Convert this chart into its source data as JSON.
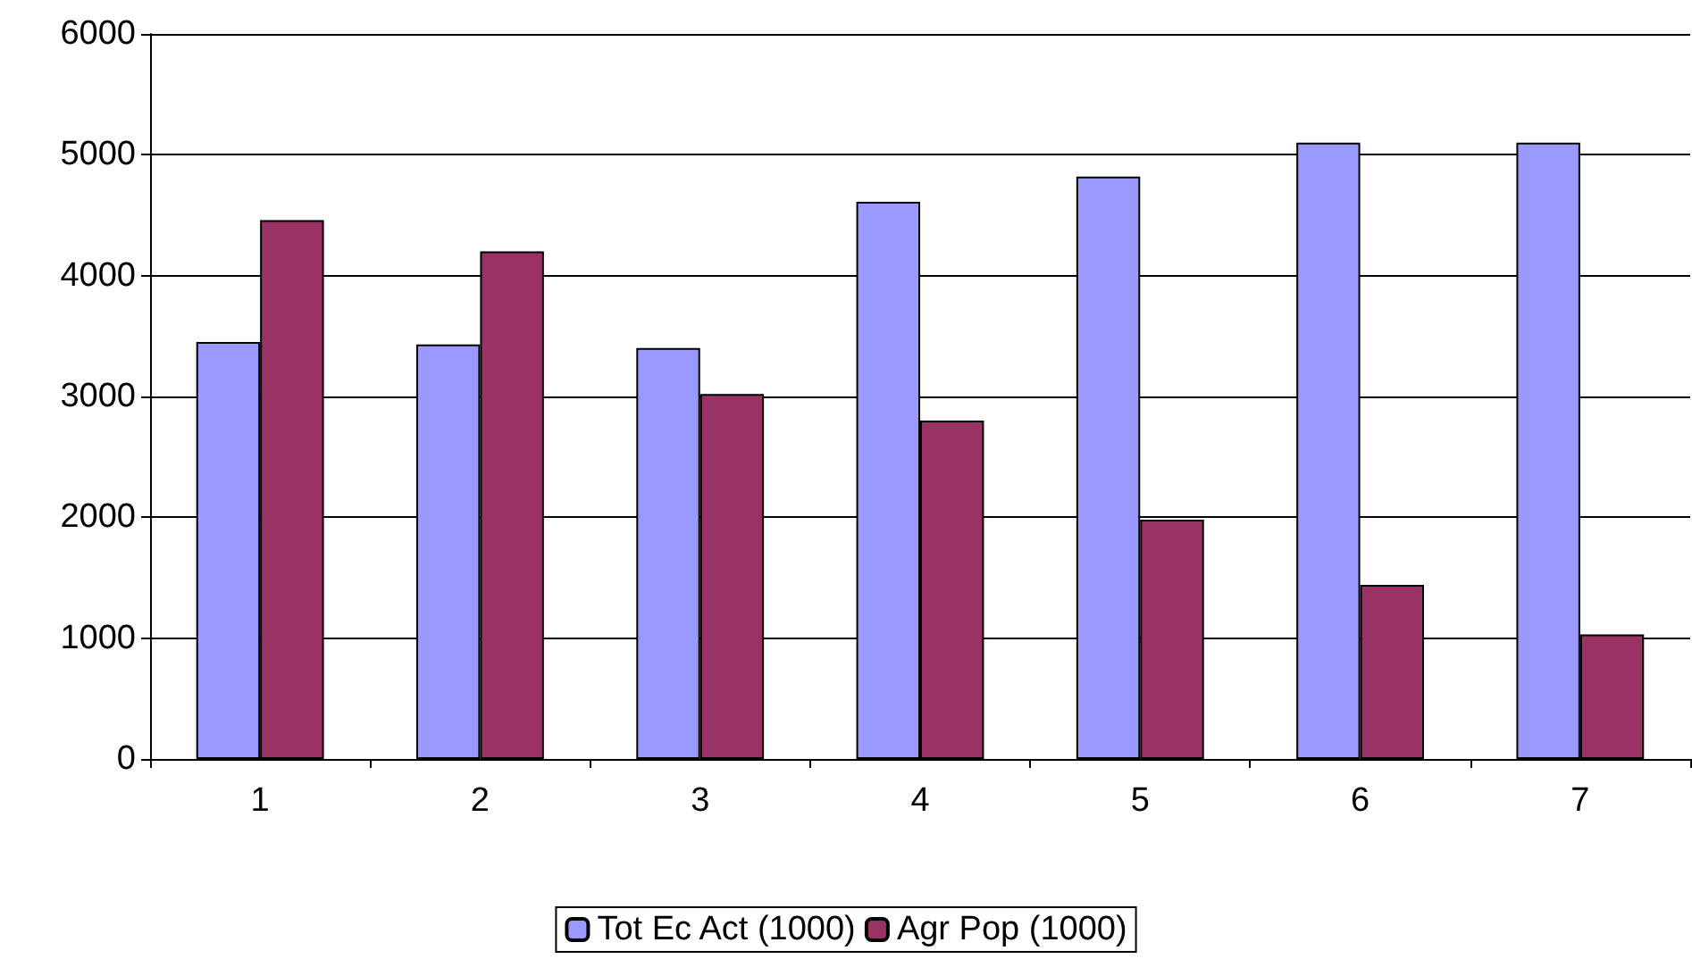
{
  "chart_data": {
    "type": "bar",
    "categories": [
      "1",
      "2",
      "3",
      "4",
      "5",
      "6",
      "7"
    ],
    "series": [
      {
        "name": "Tot Ec Act (1000)",
        "color": "#9999ff",
        "values": [
          3450,
          3430,
          3400,
          4610,
          4820,
          5100,
          5100
        ]
      },
      {
        "name": "Agr Pop (1000)",
        "color": "#993366",
        "values": [
          4460,
          4200,
          3020,
          2800,
          1980,
          1440,
          1030
        ]
      }
    ],
    "ylim": [
      0,
      6000
    ],
    "yticks": [
      0,
      1000,
      2000,
      3000,
      4000,
      5000,
      6000
    ],
    "grid": "y",
    "legend": "bottom"
  }
}
